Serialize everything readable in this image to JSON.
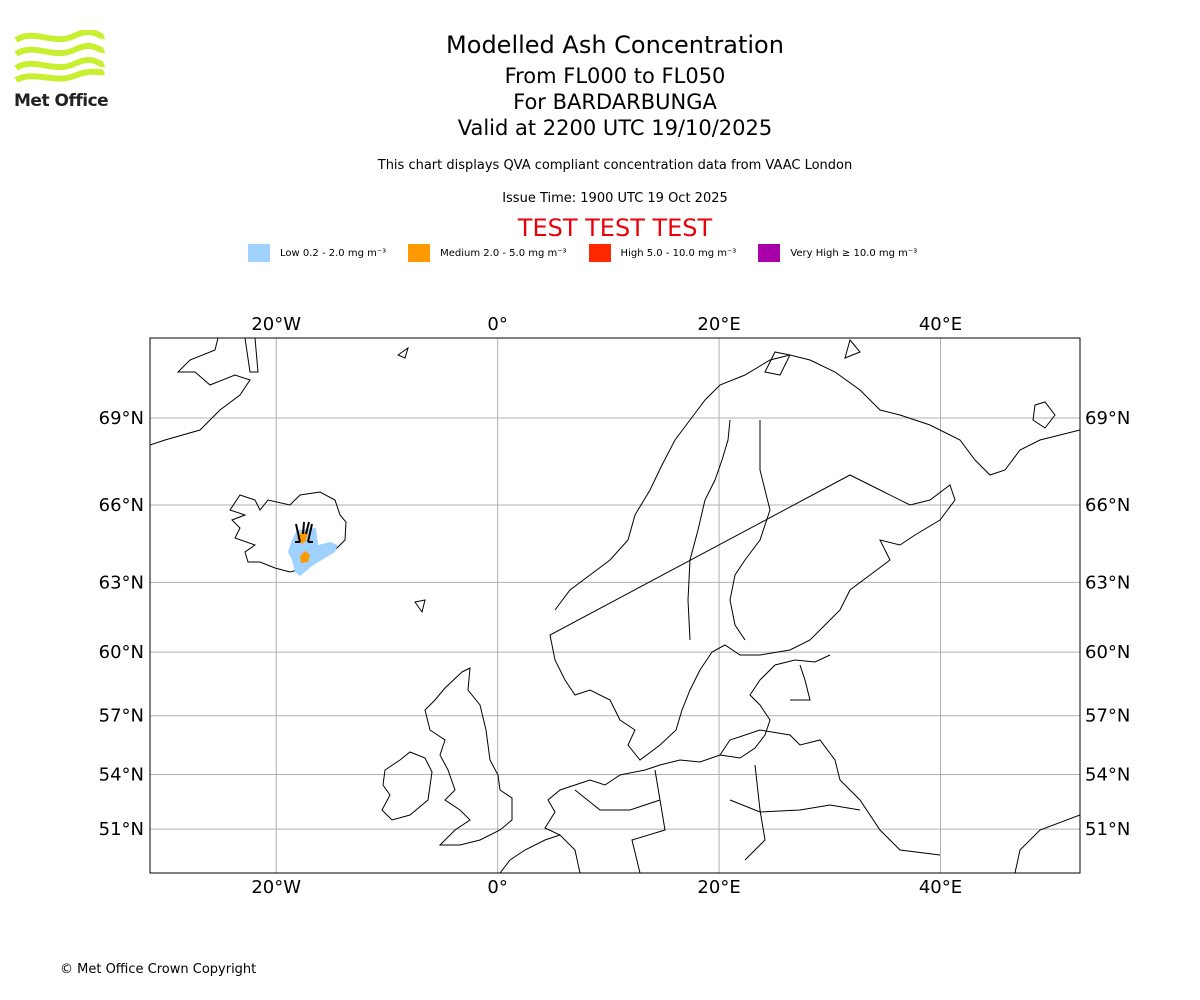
{
  "header": {
    "logo_text": "Met Office",
    "title": "Modelled Ash Concentration",
    "levels": "From FL000 to FL050",
    "volcano": "For BARDARBUNGA",
    "valid": "Valid at 2200 UTC 19/10/2025",
    "subtitle": "This chart displays QVA compliant concentration data from VAAC London",
    "issue_time": "Issue Time: 1900 UTC 19 Oct 2025",
    "test_banner": "TEST TEST TEST",
    "test_color": "#e8000b"
  },
  "legend": [
    {
      "label": "Low 0.2 - 2.0 mg m⁻³",
      "color": "#a0d2ff"
    },
    {
      "label": "Medium 2.0 - 5.0 mg m⁻³",
      "color": "#ff9900"
    },
    {
      "label": "High 5.0 - 10.0 mg m⁻³",
      "color": "#ff2800"
    },
    {
      "label": "Very High ≥ 10.0 mg m⁻³",
      "color": "#aa00aa"
    }
  ],
  "map": {
    "lon_range": [
      -31.4,
      52.6
    ],
    "lat_range": [
      48.4,
      71.4
    ],
    "lon_ticks": [
      {
        "value": -20,
        "label": "20°W"
      },
      {
        "value": 0,
        "label": "0°"
      },
      {
        "value": 20,
        "label": "20°E"
      },
      {
        "value": 40,
        "label": "40°E"
      }
    ],
    "lat_ticks": [
      {
        "value": 69,
        "label": "69°N"
      },
      {
        "value": 66,
        "label": "66°N"
      },
      {
        "value": 63,
        "label": "63°N"
      },
      {
        "value": 60,
        "label": "60°N"
      },
      {
        "value": 57,
        "label": "57°N"
      },
      {
        "value": 54,
        "label": "54°N"
      },
      {
        "value": 51,
        "label": "51°N"
      }
    ]
  },
  "footer": {
    "copyright": "© Met Office Crown Copyright"
  }
}
